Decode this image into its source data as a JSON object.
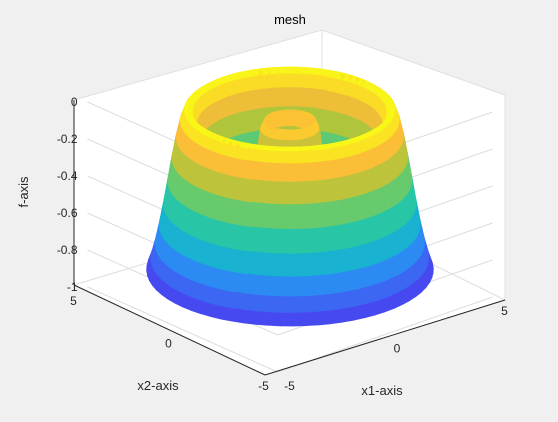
{
  "chart_data": {
    "type": "surface",
    "title": "mesh",
    "xlabel": "x1-axis",
    "ylabel": "x2-axis",
    "zlabel": "f-axis",
    "xlim": [
      -5,
      5
    ],
    "ylim": [
      -5,
      5
    ],
    "zlim": [
      -1,
      0
    ],
    "x_ticks": [
      "-5",
      "0",
      "5"
    ],
    "y_ticks": [
      "-5",
      "0",
      "5"
    ],
    "z_ticks": [
      "-1",
      "-0.8",
      "-0.6",
      "-0.4",
      "-0.2",
      "0"
    ],
    "grid": true,
    "colormap": "parula",
    "surface": {
      "shape": "radially symmetric rings",
      "radius_max": 5
    }
  }
}
